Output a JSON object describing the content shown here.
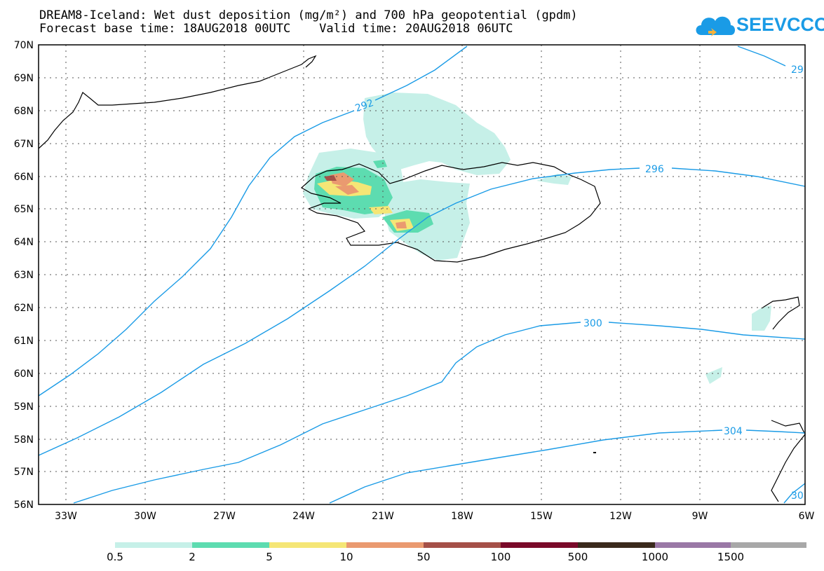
{
  "header": {
    "title_line1": "DREAM8-Iceland: Wet dust deposition (mg/m²) and 700 hPa geopotential (gpdm)",
    "title_line2": "Forecast base time: 18AUG2018 00UTC    Valid time: 20AUG2018 06UTC"
  },
  "logo": {
    "text": "SEEVCCC",
    "color": "#1a9be6"
  },
  "map": {
    "lat_labels": [
      "70N",
      "69N",
      "68N",
      "67N",
      "66N",
      "65N",
      "64N",
      "63N",
      "62N",
      "61N",
      "60N",
      "59N",
      "58N",
      "57N",
      "56N"
    ],
    "lon_labels": [
      "33W",
      "30W",
      "27W",
      "24W",
      "21W",
      "18W",
      "15W",
      "12W",
      "9W",
      "6W"
    ],
    "contour_labels": [
      "292",
      "296",
      "300",
      "304",
      "29",
      "30"
    ],
    "contour_color": "#1a9be6"
  },
  "legend": {
    "labels": [
      "0.5",
      "2",
      "5",
      "10",
      "50",
      "100",
      "500",
      "1000",
      "1500"
    ],
    "colors": [
      "#c6f0e8",
      "#5ddcb0",
      "#f5e676",
      "#ea9a70",
      "#a55048",
      "#7a0a2a",
      "#3a2a1c",
      "#9a78a6",
      "#a8a8a8"
    ]
  }
}
